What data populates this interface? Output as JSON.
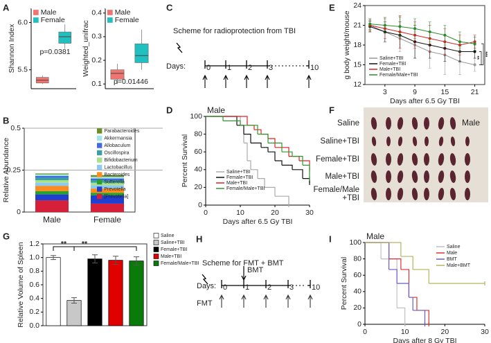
{
  "chart_data": [
    {
      "type": "box",
      "label": "A",
      "ylabel": "Shannon Index",
      "annotations": [
        "p=0.0381"
      ],
      "ylim": [
        5.3,
        6.15
      ],
      "yticks": [
        5.5,
        {
          "value": 6,
          "label": "6.0"
        }
      ],
      "series": [
        {
          "name": "Male",
          "color": "#f07470",
          "min": 5.35,
          "q1": 5.36,
          "median": 5.39,
          "q3": 5.42,
          "max": 5.44
        },
        {
          "name": "Female",
          "color": "#22bfc0",
          "min": 5.72,
          "q1": 5.78,
          "median": 5.85,
          "q3": 5.9,
          "max": 5.98
        }
      ]
    },
    {
      "type": "box",
      "ylabel": "Weighted_unifrac",
      "annotations": [
        "p=0.01446"
      ],
      "ylim": [
        0.08,
        0.42
      ],
      "yticks": [
        0.1,
        0.2,
        0.3,
        0.4
      ],
      "series": [
        {
          "name": "Male",
          "color": "#f07470",
          "min": 0.1,
          "q1": 0.12,
          "median": 0.145,
          "q3": 0.16,
          "max": 0.185
        },
        {
          "name": "Female",
          "color": "#22bfc0",
          "min": 0.16,
          "q1": 0.19,
          "median": 0.22,
          "q3": 0.27,
          "max": 0.33
        }
      ]
    },
    {
      "type": "bar",
      "stacked": true,
      "label": "B",
      "ylabel": "Relative Abundance",
      "categories": [
        "Male",
        "Female"
      ],
      "ylim": [
        0,
        0.5
      ],
      "yticks": [
        0,
        0.25,
        0.5
      ],
      "series": [
        {
          "name": "[Prevotella]",
          "color": "#d6203a",
          "values": [
            0.07,
            0.05
          ]
        },
        {
          "name": "Prevotella",
          "color": "#1f3fd0",
          "values": [
            0.035,
            0.05
          ]
        },
        {
          "name": "Sutterella",
          "color": "#2ca02c",
          "values": [
            0.02,
            0.015
          ]
        },
        {
          "name": "Bacteroides",
          "color": "#ff8c1a",
          "values": [
            0.03,
            0.025
          ]
        },
        {
          "name": "Lactobacillus",
          "color": "#8ec9f0",
          "values": [
            0.02,
            0.02
          ]
        },
        {
          "name": "Bifidobacterium",
          "color": "#a6e38a",
          "values": [
            0.015,
            0.015
          ]
        },
        {
          "name": "Oscillospira",
          "color": "#3aa0a0",
          "values": [
            0.015,
            0.015
          ]
        },
        {
          "name": "Allobaculum",
          "color": "#4169e1",
          "values": [
            0.01,
            0.01
          ]
        },
        {
          "name": "Akkermansia",
          "color": "#a0e6e6",
          "values": [
            0.01,
            0.01
          ]
        },
        {
          "name": "Parabacteroides",
          "color": "#6b8e23",
          "values": [
            0.005,
            0.01
          ]
        }
      ]
    },
    {
      "type": "step",
      "label": "D",
      "ylabel": "Percent Survival",
      "xlabel": "Days after 6.5 Gy TBI",
      "annotations": [
        "Male"
      ],
      "xlim": [
        0,
        30
      ],
      "xticks": [
        0,
        10,
        20,
        30
      ],
      "ylim": [
        0,
        100
      ],
      "yticks": [
        0,
        20,
        40,
        60,
        80,
        100
      ],
      "series": [
        {
          "name": "Saline+TBI",
          "color": "#aaaaaa",
          "x": [
            0,
            10,
            11,
            12,
            13,
            15,
            17,
            20,
            24
          ],
          "values": [
            100,
            90,
            70,
            50,
            40,
            30,
            20,
            10,
            0
          ]
        },
        {
          "name": "Female+TBI",
          "color": "#111111",
          "x": [
            0,
            9,
            11,
            13,
            16,
            18,
            20,
            22,
            25,
            28,
            30
          ],
          "values": [
            100,
            90,
            80,
            70,
            65,
            60,
            50,
            45,
            40,
            30,
            25
          ]
        },
        {
          "name": "Male+TBI",
          "color": "#e02020",
          "x": [
            0,
            12,
            14,
            16,
            18,
            20,
            24,
            27,
            30
          ],
          "values": [
            100,
            90,
            85,
            80,
            75,
            65,
            55,
            50,
            40
          ]
        },
        {
          "name": "Female/Male+TBI",
          "color": "#2a9a2a",
          "x": [
            0,
            5,
            10,
            15,
            18,
            22,
            25,
            28,
            30
          ],
          "values": [
            100,
            95,
            90,
            80,
            70,
            60,
            55,
            45,
            30
          ]
        }
      ]
    },
    {
      "type": "line",
      "label": "E",
      "ylabel": "g body weight/mouse",
      "xlabel": "Days after 6.5 Gy TBI",
      "annotations": [
        "**",
        "***"
      ],
      "x": [
        0,
        3,
        6,
        9,
        12,
        15,
        18,
        21
      ],
      "xlim": [
        -1,
        23
      ],
      "xticks": [
        3,
        9,
        15,
        21
      ],
      "ylim": [
        12,
        24
      ],
      "yticks": [
        12,
        15,
        18,
        21,
        24
      ],
      "series": [
        {
          "name": "Saline+TBI",
          "color": "#999999",
          "values": [
            21,
            20,
            19,
            18,
            17,
            16.5,
            15.5,
            15
          ],
          "errors": [
            1,
            1.5,
            2,
            2,
            2.5,
            3,
            2,
            1
          ]
        },
        {
          "name": "Female+TBI",
          "color": "#111111",
          "values": [
            20.8,
            20,
            19.5,
            18.5,
            18,
            17.5,
            17,
            17
          ],
          "errors": [
            0.8,
            1.5,
            2,
            2.5,
            2,
            2,
            1.5,
            1
          ]
        },
        {
          "name": "Male+TBI",
          "color": "#d62020",
          "values": [
            21,
            20.5,
            20,
            19.5,
            19,
            18.5,
            18,
            18.5
          ],
          "errors": [
            0.8,
            1.5,
            2.5,
            2,
            2,
            2,
            1.5,
            1
          ]
        },
        {
          "name": "Female/Male+TBI",
          "color": "#2a8a2a",
          "values": [
            21.2,
            21,
            20.8,
            20.5,
            20,
            19.5,
            18.5,
            18.2
          ],
          "errors": [
            0.8,
            1.2,
            1.5,
            1.5,
            1.5,
            1.5,
            1.5,
            1
          ]
        }
      ]
    },
    {
      "type": "bar",
      "label": "G",
      "ylabel": "Relative Volume of Spleen",
      "annotations": [
        "**",
        "**"
      ],
      "ylim": [
        0,
        1.2
      ],
      "yticks": [
        {
          "value": 0,
          "label": "0.0"
        },
        0.2,
        0.4,
        0.6,
        0.8,
        {
          "value": 1,
          "label": "1.0"
        },
        1.2
      ],
      "series": [
        {
          "name": "Saline",
          "color": "#ffffff",
          "value": 1.0,
          "error": 0.03
        },
        {
          "name": "Saline+TBI",
          "color": "#c8c8c8",
          "value": 0.37,
          "error": 0.04
        },
        {
          "name": "Female+TBI",
          "color": "#000000",
          "value": 0.98,
          "error": 0.06
        },
        {
          "name": "Male+TBI",
          "color": "#e00000",
          "value": 0.96,
          "error": 0.06
        },
        {
          "name": "Female/Male+TBI",
          "color": "#0a7a0a",
          "value": 0.95,
          "error": 0.06
        }
      ]
    },
    {
      "type": "step",
      "label": "I",
      "ylabel": "Percent Survival",
      "xlabel": "Days after 8 Gy TBI",
      "annotations": [
        "Male"
      ],
      "xlim": [
        0,
        30
      ],
      "xticks": [
        0,
        10,
        20,
        30
      ],
      "ylim": [
        0,
        100
      ],
      "yticks": [
        0,
        20,
        40,
        60,
        80,
        100
      ],
      "series": [
        {
          "name": "Saline",
          "color": "#c0c0c0",
          "x": [
            0,
            4,
            8,
            10
          ],
          "values": [
            100,
            80,
            20,
            0
          ]
        },
        {
          "name": "Male",
          "color": "#e03030",
          "x": [
            0,
            6,
            9,
            11,
            13,
            16
          ],
          "values": [
            100,
            80,
            67,
            33,
            17,
            0
          ]
        },
        {
          "name": "BMT",
          "color": "#6a5acd",
          "x": [
            0,
            6,
            8,
            11,
            12,
            15
          ],
          "values": [
            100,
            67,
            50,
            33,
            17,
            0
          ]
        },
        {
          "name": "Male+BMT",
          "color": "#b5b35c",
          "x": [
            0,
            9,
            12,
            16,
            30
          ],
          "values": [
            100,
            83,
            67,
            50,
            50
          ]
        }
      ]
    }
  ],
  "schemes": [
    {
      "label": "C",
      "title": "Scheme for radioprotection from TBI",
      "days_label": "Days:",
      "days": [
        0,
        1,
        2,
        3,
        10
      ]
    },
    {
      "label": "H",
      "title": "Scheme for FMT + BMT",
      "days_label": "Days:",
      "days": [
        0,
        1,
        2,
        3,
        10
      ],
      "top_arrow": "BMT",
      "bottom_label": "FMT"
    }
  ],
  "photo": {
    "label": "F",
    "corner": "Male",
    "rows": [
      "Saline",
      "Saline+TBI",
      "Female+TBI",
      "Male+TBI",
      "Female/Male",
      "+TBI"
    ]
  }
}
